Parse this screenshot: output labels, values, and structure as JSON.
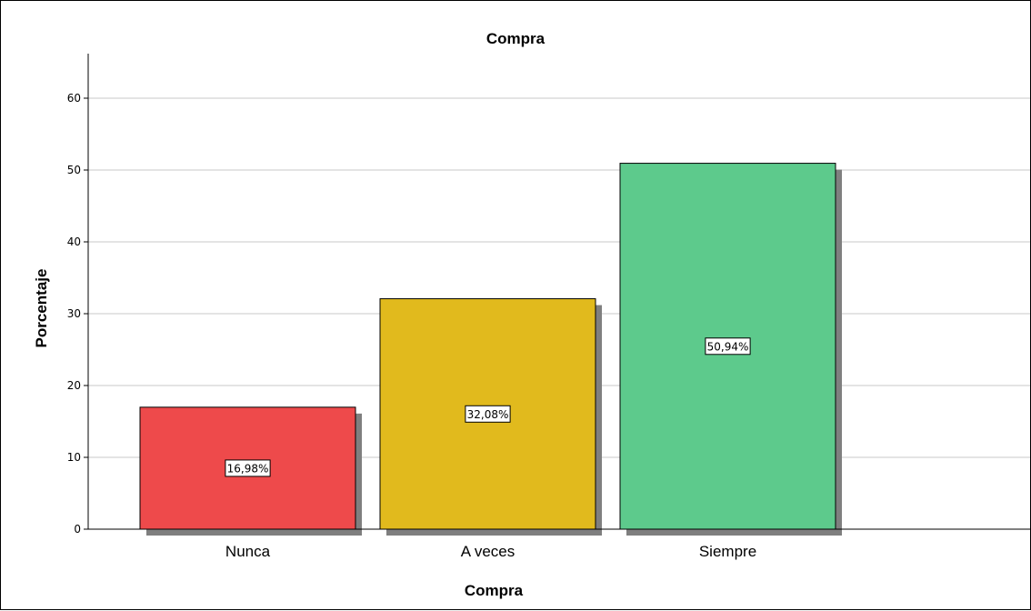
{
  "chart_data": {
    "type": "bar",
    "title": "Compra",
    "xlabel": "Compra",
    "ylabel": "Porcentaje",
    "categories": [
      "Nunca",
      "A veces",
      "Siempre"
    ],
    "values": [
      16.98,
      32.08,
      50.94
    ],
    "data_labels": [
      "16,98%",
      "32,08%",
      "50,94%"
    ],
    "colors": [
      "#ee4a4b",
      "#e1ba1d",
      "#5dca8c"
    ],
    "ylim": [
      0,
      65
    ],
    "yticks": [
      0,
      10,
      20,
      30,
      40,
      50,
      60
    ],
    "grid": true,
    "legend": "none"
  }
}
